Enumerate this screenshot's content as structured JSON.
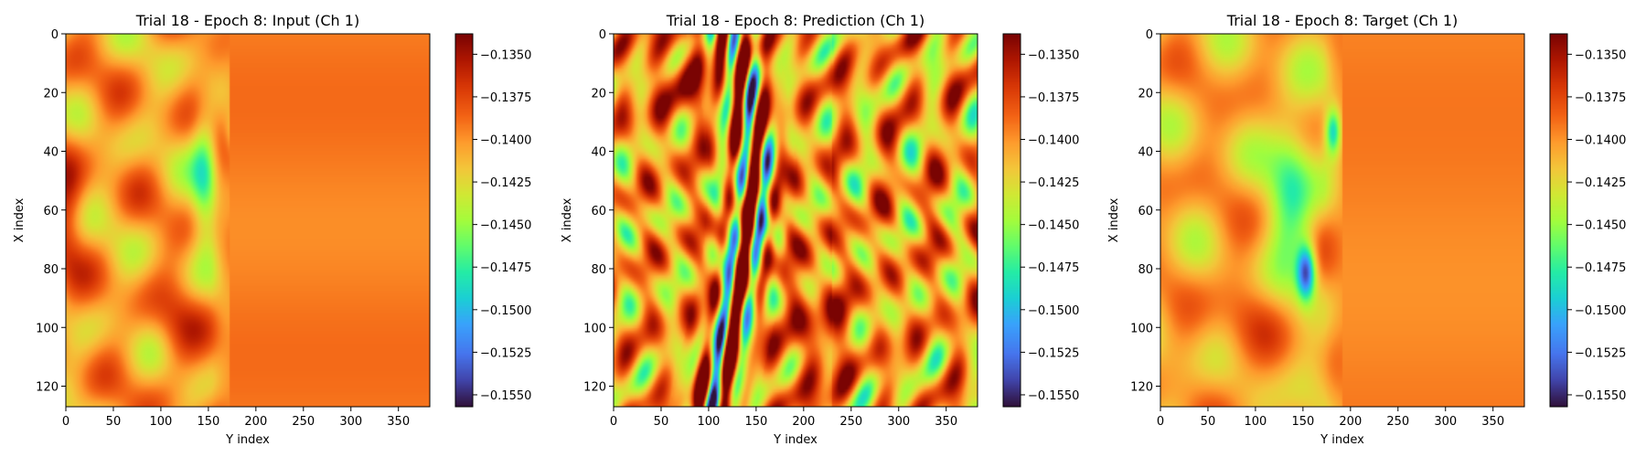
{
  "figure": {
    "panels": [
      {
        "title": "Trial 18 - Epoch 8: Input (Ch 1)",
        "xlabel": "Y index",
        "ylabel": "X index",
        "pattern": "input"
      },
      {
        "title": "Trial 18 - Epoch 8: Prediction (Ch 1)",
        "xlabel": "Y index",
        "ylabel": "X index",
        "pattern": "prediction"
      },
      {
        "title": "Trial 18 - Epoch 8: Target (Ch 1)",
        "xlabel": "Y index",
        "ylabel": "X index",
        "pattern": "target"
      }
    ]
  },
  "chart_data": {
    "type": "heatmap",
    "colormap": "turbo",
    "grid": false,
    "x_range": [
      0,
      383
    ],
    "y_range": [
      0,
      127
    ],
    "y_inverted": true,
    "x_ticks": [
      "0",
      "50",
      "100",
      "150",
      "200",
      "250",
      "300",
      "350"
    ],
    "x_tick_values": [
      0,
      50,
      100,
      150,
      200,
      250,
      300,
      350
    ],
    "y_ticks": [
      "0",
      "20",
      "40",
      "60",
      "80",
      "100",
      "120"
    ],
    "y_tick_values": [
      0,
      20,
      40,
      60,
      80,
      100,
      120
    ],
    "colorbar_range": [
      -0.1557,
      -0.1338
    ],
    "colorbar_ticks": [
      "−0.1350",
      "−0.1375",
      "−0.1400",
      "−0.1425",
      "−0.1450",
      "−0.1475",
      "−0.1500",
      "−0.1525",
      "−0.1550"
    ],
    "colorbar_tick_values": [
      -0.135,
      -0.1375,
      -0.14,
      -0.1425,
      -0.145,
      -0.1475,
      -0.15,
      -0.1525,
      -0.155
    ]
  }
}
